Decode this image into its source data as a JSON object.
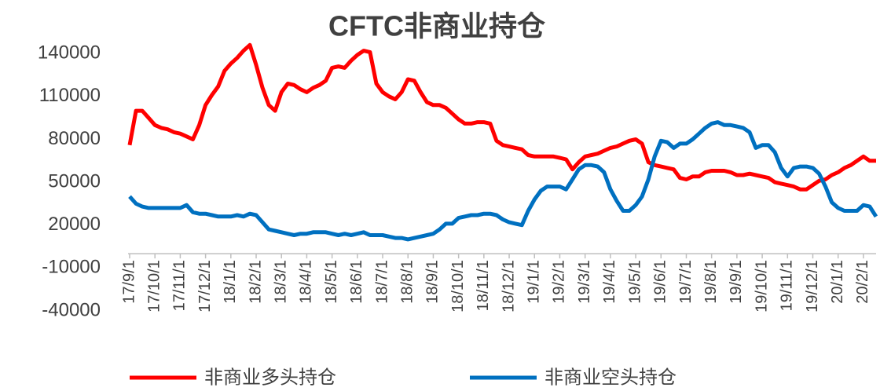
{
  "chart_data": {
    "type": "line",
    "title": "CFTC非商业持仓",
    "categories": [
      "17/9/1",
      null,
      null,
      null,
      "17/10/1",
      null,
      null,
      null,
      "17/11/1",
      null,
      null,
      null,
      "17/12/1",
      null,
      null,
      null,
      "18/1/1",
      null,
      null,
      null,
      "18/2/1",
      null,
      null,
      null,
      "18/3/1",
      null,
      null,
      null,
      "18/4/1",
      null,
      null,
      null,
      "18/5/1",
      null,
      null,
      null,
      "18/6/1",
      null,
      null,
      null,
      "18/7/1",
      null,
      null,
      null,
      "18/8/1",
      null,
      null,
      null,
      "18/9/1",
      null,
      null,
      null,
      "18/10/1",
      null,
      null,
      null,
      "18/11/1",
      null,
      null,
      null,
      "18/12/1",
      null,
      null,
      null,
      "19/1/1",
      null,
      null,
      null,
      "19/2/1",
      null,
      null,
      null,
      "19/3/1",
      null,
      null,
      null,
      "19/4/1",
      null,
      null,
      null,
      "19/5/1",
      null,
      null,
      null,
      "19/6/1",
      null,
      null,
      null,
      "19/7/1",
      null,
      null,
      null,
      "19/8/1",
      null,
      null,
      null,
      "19/9/1",
      null,
      null,
      null,
      "19/10/1",
      null,
      null,
      null,
      "19/11/1",
      null,
      null,
      null,
      "19/12/1",
      null,
      null,
      null,
      "20/1/1",
      null,
      null,
      null,
      "20/2/1",
      null,
      null
    ],
    "series": [
      {
        "name": "非商业多头持仓",
        "color": "#ff0000",
        "values": [
          76000,
          100000,
          100000,
          95000,
          90000,
          88000,
          87000,
          85000,
          84000,
          82000,
          80000,
          90000,
          104000,
          111000,
          117000,
          128000,
          133000,
          137000,
          142000,
          146000,
          132000,
          116000,
          104000,
          100000,
          113000,
          119000,
          118000,
          115000,
          113000,
          116000,
          118000,
          121000,
          130000,
          131000,
          130000,
          135000,
          139000,
          142000,
          141000,
          119000,
          113000,
          110000,
          108000,
          113000,
          122000,
          121000,
          113000,
          106000,
          104000,
          104000,
          102000,
          98000,
          94000,
          91000,
          91000,
          92000,
          92000,
          91000,
          79000,
          76000,
          75000,
          74000,
          73000,
          69000,
          68000,
          68000,
          68000,
          68000,
          67000,
          66000,
          59000,
          64000,
          68000,
          69000,
          70000,
          72000,
          74000,
          75000,
          77000,
          79000,
          80000,
          77000,
          64000,
          62000,
          61000,
          60000,
          59000,
          53000,
          52000,
          54000,
          54000,
          57000,
          58000,
          58000,
          58000,
          57000,
          55000,
          55000,
          56000,
          55000,
          54000,
          53000,
          50000,
          49000,
          48000,
          47000,
          45000,
          45000,
          48000,
          51000,
          52000,
          55000,
          57000,
          60000,
          62000,
          65000,
          68000,
          65000,
          65000
        ]
      },
      {
        "name": "非商业空头持仓",
        "color": "#0070c0",
        "values": [
          40000,
          35000,
          33000,
          32000,
          32000,
          32000,
          32000,
          32000,
          32000,
          34000,
          29000,
          28000,
          28000,
          27000,
          26000,
          26000,
          26000,
          27000,
          26000,
          28000,
          27000,
          22000,
          17000,
          16000,
          15000,
          14000,
          13000,
          14000,
          14000,
          15000,
          15000,
          15000,
          14000,
          13000,
          14000,
          13000,
          14000,
          15000,
          13000,
          13000,
          13000,
          12000,
          11000,
          11000,
          10000,
          11000,
          12000,
          13000,
          14000,
          17000,
          21000,
          21000,
          25000,
          26000,
          27000,
          27000,
          28000,
          28000,
          27000,
          24000,
          22000,
          21000,
          20000,
          30000,
          38000,
          44000,
          47000,
          47000,
          47000,
          45000,
          52000,
          59000,
          62000,
          62000,
          61000,
          57000,
          45000,
          37000,
          30000,
          30000,
          34000,
          40000,
          52000,
          68000,
          79000,
          78000,
          74000,
          77000,
          77000,
          80000,
          84000,
          88000,
          91000,
          92000,
          90000,
          90000,
          89000,
          88000,
          85000,
          74000,
          76000,
          76000,
          71000,
          60000,
          54000,
          60000,
          61000,
          61000,
          60000,
          56000,
          47000,
          36000,
          32000,
          30000,
          30000,
          30000,
          34000,
          33000,
          26000
        ]
      }
    ],
    "ylim": [
      -40000,
      150000
    ],
    "yticks": [
      -40000,
      -10000,
      20000,
      50000,
      80000,
      110000,
      140000
    ]
  }
}
